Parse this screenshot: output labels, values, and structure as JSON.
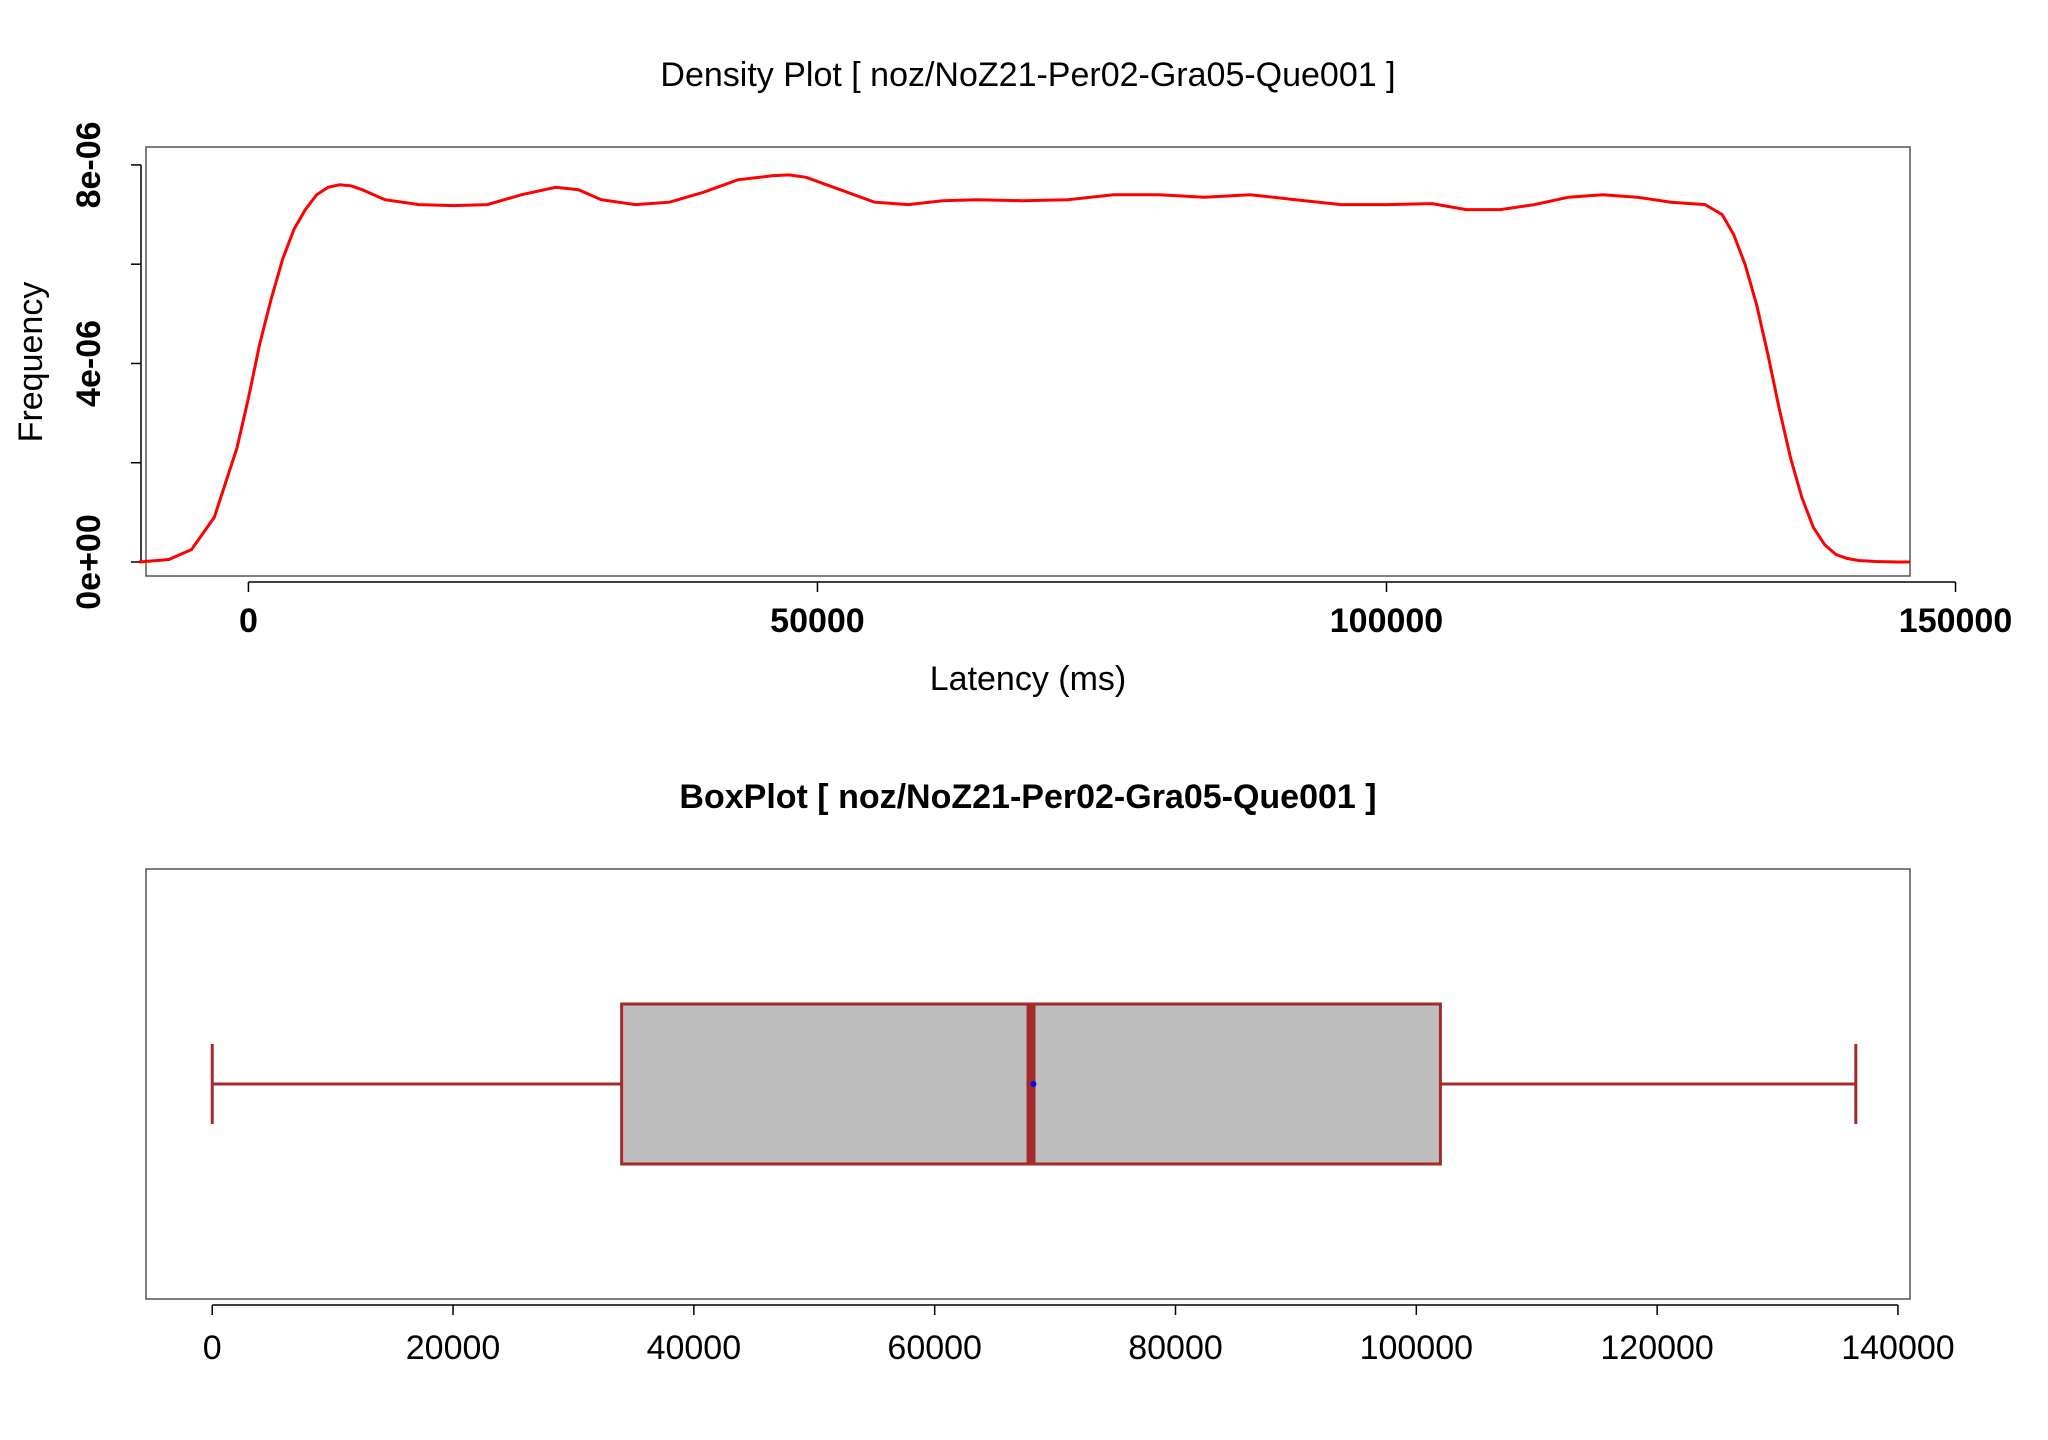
{
  "chart_data": [
    {
      "type": "line",
      "title": "Density Plot [ noz/NoZ21-Per02-Gra05-Que001 ]",
      "xlabel": "Latency (ms)",
      "ylabel": "Frequency",
      "xlim": [
        -9000,
        146000
      ],
      "ylim": [
        0,
        8.2e-06
      ],
      "x_ticks": [
        0,
        50000,
        100000,
        150000
      ],
      "x_tick_labels": [
        "0",
        "50000",
        "100000",
        "150000"
      ],
      "y_ticks": [
        0,
        2e-06,
        4e-06,
        6e-06,
        8e-06
      ],
      "y_tick_labels": [
        "0e+00",
        "",
        "4e-06",
        "",
        "8e-06"
      ],
      "line_color": "#ff0000",
      "grid": false,
      "series": [
        {
          "x": [
            -9600,
            -7000,
            -5000,
            -3000,
            -1000,
            0,
            1000,
            2000,
            3000,
            4000,
            5000,
            6000,
            7000,
            8000,
            9000,
            10000,
            12000,
            15000,
            18000,
            21000,
            24000,
            27000,
            29000,
            31000,
            34000,
            37000,
            40000,
            43000,
            46000,
            47500,
            49000,
            52000,
            55000,
            58000,
            61000,
            64000,
            68000,
            72000,
            76000,
            80000,
            84000,
            88000,
            92000,
            96000,
            100000,
            104000,
            107000,
            110000,
            113000,
            116000,
            119000,
            122000,
            125000,
            128000,
            129500,
            130500,
            131500,
            132500,
            133500,
            134500,
            135500,
            136500,
            137500,
            138500,
            139500,
            140500,
            141500,
            143000,
            145000,
            146000
          ],
          "y": [
            0.0,
            5e-08,
            2.5e-07,
            9e-07,
            2.3e-06,
            3.3e-06,
            4.4e-06,
            5.3e-06,
            6.1e-06,
            6.7e-06,
            7.1e-06,
            7.4e-06,
            7.55e-06,
            7.6e-06,
            7.58e-06,
            7.5e-06,
            7.3e-06,
            7.2e-06,
            7.18e-06,
            7.2e-06,
            7.4e-06,
            7.55e-06,
            7.5e-06,
            7.3e-06,
            7.2e-06,
            7.25e-06,
            7.45e-06,
            7.7e-06,
            7.78e-06,
            7.8e-06,
            7.75e-06,
            7.5e-06,
            7.25e-06,
            7.2e-06,
            7.28e-06,
            7.3e-06,
            7.28e-06,
            7.3e-06,
            7.4e-06,
            7.4e-06,
            7.35e-06,
            7.4e-06,
            7.3e-06,
            7.2e-06,
            7.2e-06,
            7.22e-06,
            7.1e-06,
            7.1e-06,
            7.2e-06,
            7.35e-06,
            7.4e-06,
            7.35e-06,
            7.25e-06,
            7.2e-06,
            7e-06,
            6.6e-06,
            6e-06,
            5.2e-06,
            4.2e-06,
            3.1e-06,
            2.1e-06,
            1.3e-06,
            7e-07,
            3.5e-07,
            1.5e-07,
            7e-08,
            3e-08,
            1e-08,
            0.0,
            0.0
          ]
        }
      ]
    },
    {
      "type": "box",
      "title": "BoxPlot [ noz/NoZ21-Per02-Gra05-Que001 ]",
      "xlabel": "",
      "ylabel": "",
      "xlim": [
        -5500,
        141000
      ],
      "x_ticks": [
        0,
        20000,
        40000,
        60000,
        80000,
        100000,
        120000,
        140000
      ],
      "x_tick_labels": [
        "0",
        "20000",
        "40000",
        "60000",
        "80000",
        "100000",
        "120000",
        "140000"
      ],
      "box": {
        "min": 0,
        "q1": 34000,
        "median": 68000,
        "mean": 68200,
        "q3": 102000,
        "max": 136500
      },
      "box_fill": "#bebebe",
      "border_color": "#a52a2a",
      "mean_color": "#0000ff",
      "grid": false
    }
  ]
}
